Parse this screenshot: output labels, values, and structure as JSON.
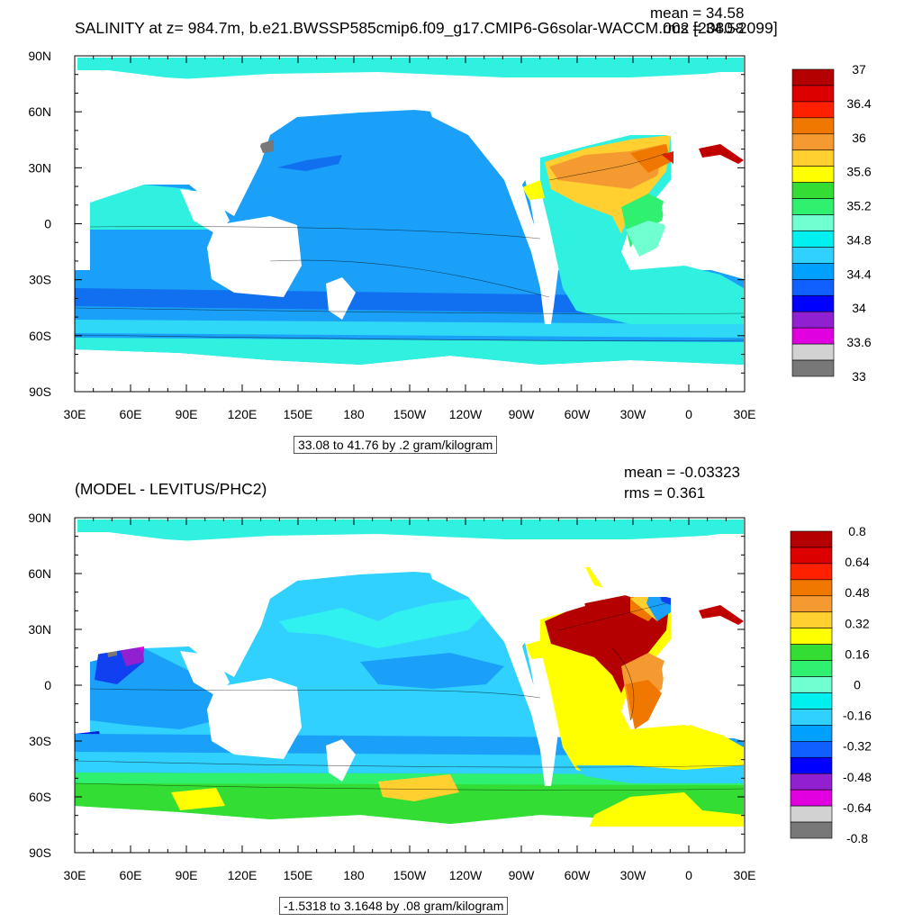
{
  "panels": [
    {
      "title": "SALINITY at z= 984.7m, b.e21.BWSSP585cmip6.f09_g17.CMIP6-G6solar-WACCM.002 [2080-2099]",
      "mean": "mean = 34.58",
      "rms": "rms = 34.58",
      "units": "33.08 to 41.76 by .2 gram/kilogram",
      "colorbar": {
        "labels": [
          "37",
          "36.4",
          "36",
          "35.6",
          "35.2",
          "34.8",
          "34.4",
          "34",
          "33.6",
          "33"
        ],
        "colors": [
          "#b40000",
          "#dc0000",
          "#ff2000",
          "#f07800",
          "#f59a30",
          "#ffd030",
          "#ffff00",
          "#33dd33",
          "#30f070",
          "#70ffd0",
          "#00f0f0",
          "#30d0ff",
          "#00a0ff",
          "#1060ff",
          "#0000ff",
          "#9020d0",
          "#e000e0",
          "#d2d2d2",
          "#787878"
        ]
      }
    },
    {
      "title": "(MODEL - LEVITUS/PHC2)",
      "mean": "mean = -0.03323",
      "rms": "rms = 0.361",
      "units": "-1.5318 to 3.1648 by .08 gram/kilogram",
      "colorbar": {
        "labels": [
          "0.8",
          "0.64",
          "0.48",
          "0.32",
          "0.16",
          "0",
          "-0.16",
          "-0.32",
          "-0.48",
          "-0.64",
          "-0.8"
        ],
        "colors": [
          "#b40000",
          "#dc0000",
          "#ff2000",
          "#f07800",
          "#f59a30",
          "#ffd030",
          "#ffff00",
          "#33dd33",
          "#30f070",
          "#70ffd0",
          "#00f0f0",
          "#30d0ff",
          "#00a0ff",
          "#1060ff",
          "#0000ff",
          "#9020d0",
          "#e000e0",
          "#d2d2d2",
          "#787878"
        ]
      }
    }
  ],
  "lat_labels": [
    "90N",
    "60N",
    "30N",
    "0",
    "30S",
    "60S",
    "90S"
  ],
  "lon_labels": [
    "30E",
    "60E",
    "90E",
    "120E",
    "150E",
    "180",
    "150W",
    "120W",
    "90W",
    "60W",
    "30W",
    "0",
    "30E"
  ]
}
